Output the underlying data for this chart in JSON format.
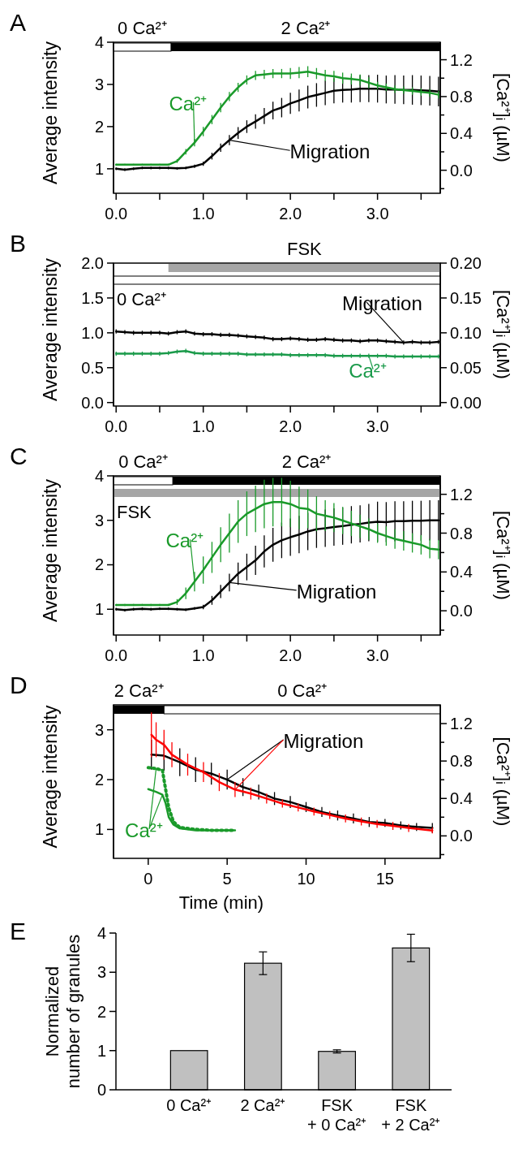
{
  "chart_data": [
    {
      "type": "line",
      "title": "A",
      "ylabel": "Average intensity",
      "y2label": "[Ca²⁺]ᵢ (µM)",
      "x": [
        0,
        0.1,
        0.2,
        0.3,
        0.4,
        0.5,
        0.6,
        0.7,
        0.8,
        0.9,
        1.0,
        1.1,
        1.2,
        1.3,
        1.4,
        1.5,
        1.6,
        1.7,
        1.8,
        1.9,
        2.0,
        2.1,
        2.2,
        2.3,
        2.4,
        2.5,
        2.6,
        2.7,
        2.8,
        2.9,
        3.0,
        3.1,
        3.2,
        3.3,
        3.4,
        3.5,
        3.6,
        3.7
      ],
      "series": [
        {
          "name": "Migration",
          "color": "#000000",
          "values": [
            1.0,
            0.98,
            1.0,
            1.02,
            1.02,
            1.02,
            1.02,
            1.01,
            1.02,
            1.06,
            1.12,
            1.3,
            1.5,
            1.68,
            1.85,
            2.0,
            2.12,
            2.25,
            2.38,
            2.45,
            2.55,
            2.62,
            2.7,
            2.75,
            2.8,
            2.85,
            2.87,
            2.88,
            2.9,
            2.9,
            2.9,
            2.88,
            2.88,
            2.87,
            2.87,
            2.86,
            2.85,
            2.83
          ],
          "errors": [
            0.03,
            0.03,
            0.03,
            0.03,
            0.03,
            0.03,
            0.03,
            0.03,
            0.03,
            0.04,
            0.05,
            0.08,
            0.1,
            0.12,
            0.14,
            0.15,
            0.17,
            0.19,
            0.21,
            0.23,
            0.25,
            0.26,
            0.27,
            0.28,
            0.29,
            0.3,
            0.3,
            0.31,
            0.32,
            0.32,
            0.33,
            0.33,
            0.34,
            0.34,
            0.35,
            0.35,
            0.35,
            0.35
          ]
        },
        {
          "name": "Ca²⁺",
          "color": "#1a9a2a",
          "axis": "y2",
          "values": [
            0.06,
            0.06,
            0.06,
            0.06,
            0.06,
            0.06,
            0.06,
            0.1,
            0.2,
            0.3,
            0.42,
            0.55,
            0.68,
            0.8,
            0.9,
            0.98,
            1.03,
            1.04,
            1.05,
            1.05,
            1.05,
            1.06,
            1.07,
            1.05,
            1.03,
            1.02,
            1.0,
            0.99,
            0.98,
            0.95,
            0.92,
            0.9,
            0.88,
            0.87,
            0.86,
            0.85,
            0.84,
            0.82
          ],
          "errors": [
            0.01,
            0.01,
            0.01,
            0.01,
            0.01,
            0.01,
            0.01,
            0.02,
            0.03,
            0.04,
            0.05,
            0.05,
            0.05,
            0.05,
            0.05,
            0.05,
            0.05,
            0.05,
            0.05,
            0.05,
            0.06,
            0.06,
            0.06,
            0.06,
            0.06,
            0.06,
            0.06,
            0.06,
            0.06,
            0.06,
            0.04,
            0.04,
            0.04,
            0.04,
            0.04,
            0.04,
            0.04,
            0.04
          ]
        }
      ],
      "bands": [
        {
          "axis": "x",
          "from": -0.03,
          "to": 0.63,
          "label": "0 Ca²⁺",
          "color": "#ffffff"
        },
        {
          "axis": "x",
          "from": 0.63,
          "to": 3.72,
          "label": "2 Ca²⁺",
          "color": "#000000"
        }
      ],
      "xlim": [
        -0.03,
        3.72
      ],
      "xticks": [
        {
          "value": 0,
          "label": "0.0"
        },
        {
          "value": 0.5,
          "label": null
        },
        {
          "value": 1,
          "label": "1.0"
        },
        {
          "value": 1.5,
          "label": null
        },
        {
          "value": 2,
          "label": "2.0"
        },
        {
          "value": 2.5,
          "label": null
        },
        {
          "value": 3,
          "label": "3.0"
        },
        {
          "value": 3.5,
          "label": null
        }
      ],
      "ylim": [
        0.42,
        4
      ],
      "yticks": [
        1,
        2,
        3,
        4
      ],
      "y2lim": [
        -0.25,
        1.39
      ],
      "y2ticks": [
        {
          "value": -0.2,
          "label": null
        },
        {
          "value": 0,
          "label": "0.0"
        },
        {
          "value": 0.2,
          "label": null
        },
        {
          "value": 0.4,
          "label": "0.4"
        },
        {
          "value": 0.6,
          "label": null
        },
        {
          "value": 0.8,
          "label": "0.8"
        },
        {
          "value": 1.0,
          "label": null
        },
        {
          "value": 1.2,
          "label": "1.2"
        }
      ],
      "marker": "none",
      "line_style": "solid"
    },
    {
      "type": "line",
      "title": "B",
      "ylabel": "Average intensity",
      "y2label": "[Ca²⁺]ᵢ (µM)",
      "x": [
        0,
        0.1,
        0.2,
        0.3,
        0.4,
        0.5,
        0.6,
        0.7,
        0.8,
        0.9,
        1.0,
        1.1,
        1.2,
        1.3,
        1.4,
        1.5,
        1.6,
        1.7,
        1.8,
        1.9,
        2.0,
        2.1,
        2.2,
        2.3,
        2.4,
        2.5,
        2.6,
        2.7,
        2.8,
        2.9,
        3.0,
        3.1,
        3.2,
        3.3,
        3.4,
        3.5,
        3.6,
        3.7
      ],
      "series": [
        {
          "name": "Migration",
          "color": "#000000",
          "values": [
            1.02,
            1.01,
            1.0,
            1.0,
            1.0,
            1.0,
            0.99,
            1.01,
            1.02,
            0.99,
            0.98,
            0.98,
            0.97,
            0.97,
            0.96,
            0.95,
            0.94,
            0.93,
            0.91,
            0.91,
            0.92,
            0.91,
            0.9,
            0.9,
            0.91,
            0.9,
            0.89,
            0.89,
            0.88,
            0.89,
            0.89,
            0.88,
            0.87,
            0.86,
            0.87,
            0.86,
            0.86,
            0.87
          ],
          "errors": [
            0.03,
            0.03,
            0.03,
            0.03,
            0.03,
            0.03,
            0.03,
            0.03,
            0.03,
            0.03,
            0.03,
            0.03,
            0.03,
            0.03,
            0.03,
            0.03,
            0.03,
            0.03,
            0.03,
            0.03,
            0.03,
            0.03,
            0.03,
            0.03,
            0.03,
            0.03,
            0.03,
            0.03,
            0.03,
            0.03,
            0.03,
            0.03,
            0.03,
            0.03,
            0.03,
            0.03,
            0.03,
            0.03
          ]
        },
        {
          "name": "Ca²⁺",
          "color": "#1a9a4a",
          "axis": "y2",
          "values": [
            0.07,
            0.07,
            0.07,
            0.07,
            0.07,
            0.07,
            0.071,
            0.073,
            0.074,
            0.071,
            0.07,
            0.07,
            0.07,
            0.07,
            0.07,
            0.069,
            0.069,
            0.069,
            0.069,
            0.069,
            0.068,
            0.068,
            0.068,
            0.068,
            0.068,
            0.067,
            0.067,
            0.067,
            0.067,
            0.067,
            0.067,
            0.067,
            0.066,
            0.066,
            0.066,
            0.066,
            0.066,
            0.066
          ],
          "errors": [
            0.003,
            0.003,
            0.003,
            0.003,
            0.003,
            0.003,
            0.003,
            0.003,
            0.003,
            0.003,
            0.003,
            0.003,
            0.003,
            0.003,
            0.003,
            0.003,
            0.003,
            0.003,
            0.003,
            0.003,
            0.003,
            0.003,
            0.003,
            0.003,
            0.003,
            0.003,
            0.003,
            0.003,
            0.003,
            0.003,
            0.003,
            0.003,
            0.003,
            0.003,
            0.003,
            0.003,
            0.003,
            0.003
          ]
        }
      ],
      "bands": [
        {
          "axis": "x",
          "from": 0.6,
          "to": 3.72,
          "label": "FSK",
          "color": "#a6a6a6"
        },
        {
          "axis": "x",
          "from": -0.03,
          "to": 3.72,
          "label": "0 Ca²⁺",
          "color": "#ffffff"
        }
      ],
      "xlim": [
        -0.03,
        3.72
      ],
      "xticks": [
        {
          "value": 0,
          "label": "0.0"
        },
        {
          "value": 0.5,
          "label": null
        },
        {
          "value": 1,
          "label": "1.0"
        },
        {
          "value": 1.5,
          "label": null
        },
        {
          "value": 2,
          "label": "2.0"
        },
        {
          "value": 2.5,
          "label": null
        },
        {
          "value": 3,
          "label": "3.0"
        },
        {
          "value": 3.5,
          "label": null
        }
      ],
      "ylim": [
        -0.05,
        2.0
      ],
      "yticks": [
        {
          "value": 0,
          "label": "0.0"
        },
        0.5,
        {
          "value": 1,
          "label": "1.0"
        },
        1.5,
        {
          "value": 2,
          "label": "2.0"
        }
      ],
      "y2lim": [
        -0.005,
        0.2
      ],
      "y2ticks": [
        {
          "value": 0,
          "label": "0.00"
        },
        0.05,
        {
          "value": 0.1,
          "label": "0.10"
        },
        0.15,
        {
          "value": 0.2,
          "label": "0.20"
        }
      ],
      "marker": "none",
      "line_style": "solid"
    },
    {
      "type": "line",
      "title": "C",
      "ylabel": "Average intensity",
      "y2label": "[Ca²⁺]ᵢ (µM)",
      "x": [
        0,
        0.1,
        0.2,
        0.3,
        0.4,
        0.5,
        0.6,
        0.7,
        0.8,
        0.9,
        1.0,
        1.1,
        1.2,
        1.3,
        1.4,
        1.5,
        1.6,
        1.7,
        1.8,
        1.9,
        2.0,
        2.1,
        2.2,
        2.3,
        2.4,
        2.5,
        2.6,
        2.7,
        2.8,
        2.9,
        3.0,
        3.1,
        3.2,
        3.3,
        3.4,
        3.5,
        3.6,
        3.7
      ],
      "series": [
        {
          "name": "Migration",
          "color": "#000000",
          "values": [
            1.0,
            0.98,
            1.0,
            1.01,
            1.0,
            1.01,
            1.01,
            1.0,
            0.99,
            1.02,
            1.05,
            1.2,
            1.4,
            1.6,
            1.8,
            1.95,
            2.1,
            2.3,
            2.45,
            2.55,
            2.62,
            2.68,
            2.75,
            2.8,
            2.82,
            2.85,
            2.87,
            2.9,
            2.92,
            2.95,
            2.97,
            2.96,
            2.98,
            2.98,
            2.99,
            2.99,
            3.0,
            3.0
          ],
          "errors": [
            0.03,
            0.03,
            0.03,
            0.03,
            0.03,
            0.03,
            0.03,
            0.03,
            0.03,
            0.03,
            0.05,
            0.1,
            0.15,
            0.2,
            0.25,
            0.3,
            0.33,
            0.36,
            0.38,
            0.4,
            0.42,
            0.42,
            0.42,
            0.42,
            0.42,
            0.42,
            0.42,
            0.42,
            0.42,
            0.42,
            0.45,
            0.45,
            0.45,
            0.45,
            0.45,
            0.45,
            0.45,
            0.45
          ]
        },
        {
          "name": "Ca²⁺",
          "color": "#1a9a2a",
          "axis": "y2",
          "values": [
            0.06,
            0.06,
            0.06,
            0.06,
            0.06,
            0.06,
            0.06,
            0.09,
            0.18,
            0.3,
            0.42,
            0.55,
            0.68,
            0.8,
            0.92,
            1.0,
            1.05,
            1.1,
            1.12,
            1.12,
            1.1,
            1.06,
            1.05,
            1.0,
            0.98,
            0.96,
            0.93,
            0.9,
            0.87,
            0.84,
            0.8,
            0.77,
            0.74,
            0.72,
            0.7,
            0.68,
            0.64,
            0.63
          ],
          "errors": [
            0.01,
            0.01,
            0.01,
            0.01,
            0.01,
            0.01,
            0.01,
            0.03,
            0.06,
            0.1,
            0.14,
            0.16,
            0.18,
            0.2,
            0.22,
            0.23,
            0.24,
            0.25,
            0.25,
            0.25,
            0.24,
            0.22,
            0.2,
            0.18,
            0.16,
            0.15,
            0.14,
            0.13,
            0.12,
            0.11,
            0.1,
            0.1,
            0.1,
            0.1,
            0.1,
            0.1,
            0.1,
            0.1
          ]
        }
      ],
      "bands": [
        {
          "axis": "x",
          "from": -0.03,
          "to": 0.65,
          "label": "0 Ca²⁺",
          "color": "#ffffff"
        },
        {
          "axis": "x",
          "from": 0.65,
          "to": 3.72,
          "label": "2 Ca²⁺",
          "color": "#000000"
        },
        {
          "axis": "x",
          "from": -0.03,
          "to": 3.72,
          "label": "FSK",
          "color": "#a6a6a6"
        }
      ],
      "xlim": [
        -0.03,
        3.72
      ],
      "xticks": [
        {
          "value": 0,
          "label": "0.0"
        },
        {
          "value": 0.5,
          "label": null
        },
        {
          "value": 1,
          "label": "1.0"
        },
        {
          "value": 1.5,
          "label": null
        },
        {
          "value": 2,
          "label": "2.0"
        },
        {
          "value": 2.5,
          "label": null
        },
        {
          "value": 3,
          "label": "3.0"
        },
        {
          "value": 3.5,
          "label": null
        }
      ],
      "ylim": [
        0.42,
        4
      ],
      "yticks": [
        1,
        2,
        3,
        4
      ],
      "y2lim": [
        -0.25,
        1.39
      ],
      "y2ticks": [
        {
          "value": -0.2,
          "label": null
        },
        {
          "value": 0,
          "label": "0.0"
        },
        {
          "value": 0.2,
          "label": null
        },
        {
          "value": 0.4,
          "label": "0.4"
        },
        {
          "value": 0.6,
          "label": null
        },
        {
          "value": 0.8,
          "label": "0.8"
        },
        {
          "value": 1.0,
          "label": null
        },
        {
          "value": 1.2,
          "label": "1.2"
        }
      ],
      "marker": "none",
      "line_style": "solid"
    },
    {
      "type": "line",
      "title": "D",
      "ylabel": "Average intensity",
      "y2label": "[Ca²⁺]ᵢ (µM)",
      "xlabel": "Time (min)",
      "series": [
        {
          "name": "Migration",
          "color": "#000000",
          "x": [
            0.2,
            1,
            2,
            3,
            4,
            5,
            6,
            7,
            8,
            9,
            10,
            11,
            12,
            13,
            14,
            15,
            16,
            17,
            18
          ],
          "values": [
            2.5,
            2.48,
            2.35,
            2.2,
            2.12,
            2.0,
            1.85,
            1.75,
            1.62,
            1.55,
            1.45,
            1.35,
            1.28,
            1.22,
            1.15,
            1.13,
            1.08,
            1.05,
            1.03
          ],
          "errors": [
            0.3,
            0.3,
            0.28,
            0.25,
            0.22,
            0.2,
            0.18,
            0.15,
            0.13,
            0.12,
            0.1,
            0.1,
            0.1,
            0.1,
            0.1,
            0.08,
            0.08,
            0.08,
            0.1
          ]
        },
        {
          "color": "#ff0000",
          "x": [
            0.2,
            0.5,
            1,
            1.5,
            2.5,
            3.5,
            4.5,
            5.5,
            6.5,
            7.5,
            8.5,
            9.5,
            10.5,
            11.5,
            12.5,
            13.5,
            14.5,
            15.5,
            16.5,
            18
          ],
          "values": [
            2.9,
            2.8,
            2.7,
            2.5,
            2.3,
            2.15,
            1.95,
            1.8,
            1.72,
            1.62,
            1.52,
            1.44,
            1.36,
            1.29,
            1.22,
            1.16,
            1.11,
            1.07,
            1.03,
            0.98
          ],
          "errors": [
            0.45,
            0.35,
            0.3,
            0.25,
            0.22,
            0.2,
            0.18,
            0.15,
            0.12,
            0.1,
            0.08,
            0.08,
            0.08,
            0.08,
            0.08,
            0.08,
            0.08,
            0.08,
            0.08,
            0.06
          ]
        },
        {
          "name": "Ca²⁺",
          "color": "#1a9a2a",
          "axis": "y2",
          "x": [
            0,
            0.5,
            0.9,
            1.1,
            1.3,
            1.6,
            2,
            3,
            4,
            5,
            5.5
          ],
          "values": [
            0.5,
            0.47,
            0.44,
            0.35,
            0.2,
            0.12,
            0.08,
            0.06,
            0.06,
            0.06,
            0.06
          ]
        },
        {
          "color": "#1a9a2a",
          "axis": "y2",
          "line_style": "dotted",
          "x": [
            0,
            0.5,
            0.9,
            1.1,
            1.3,
            1.6,
            2,
            3,
            4,
            5,
            5.5
          ],
          "values": [
            0.73,
            0.72,
            0.7,
            0.5,
            0.3,
            0.15,
            0.09,
            0.07,
            0.06,
            0.06,
            0.06
          ]
        }
      ],
      "bands": [
        {
          "axis": "x",
          "from": -2.2,
          "to": 1.0,
          "label": "2 Ca²⁺",
          "color": "#000000"
        },
        {
          "axis": "x",
          "from": 1.0,
          "to": 18.5,
          "label": "0 Ca²⁺",
          "color": "#ffffff"
        }
      ],
      "xlim": [
        -2.2,
        18.5
      ],
      "xticks": [
        0,
        5,
        10,
        15
      ],
      "ylim": [
        0.42,
        3.5
      ],
      "yticks": [
        1,
        2,
        3
      ],
      "y2lim": [
        -0.24,
        1.4
      ],
      "y2ticks": [
        {
          "value": -0.2,
          "label": null
        },
        {
          "value": 0,
          "label": "0.0"
        },
        {
          "value": 0.2,
          "label": null
        },
        {
          "value": 0.4,
          "label": "0.4"
        },
        {
          "value": 0.6,
          "label": null
        },
        {
          "value": 0.8,
          "label": "0.8"
        },
        {
          "value": 1.0,
          "label": null
        },
        {
          "value": 1.2,
          "label": "1.2"
        }
      ],
      "marker": "none",
      "line_style": "solid"
    },
    {
      "type": "bar",
      "title": "E",
      "ylabel": "Normalized\nnumber of granules",
      "categories": [
        "0 Ca²⁺",
        "2 Ca²⁺",
        "FSK\n+ 0 Ca²⁺",
        "FSK\n+ 2 Ca²⁺"
      ],
      "values": [
        1,
        3.23,
        0.98,
        3.62
      ],
      "errors": [
        null,
        0.29,
        0.04,
        0.35
      ],
      "color": "#c0c0c0",
      "ylim": [
        0,
        4
      ],
      "yticks": [
        0,
        1,
        2,
        3,
        4
      ]
    }
  ]
}
